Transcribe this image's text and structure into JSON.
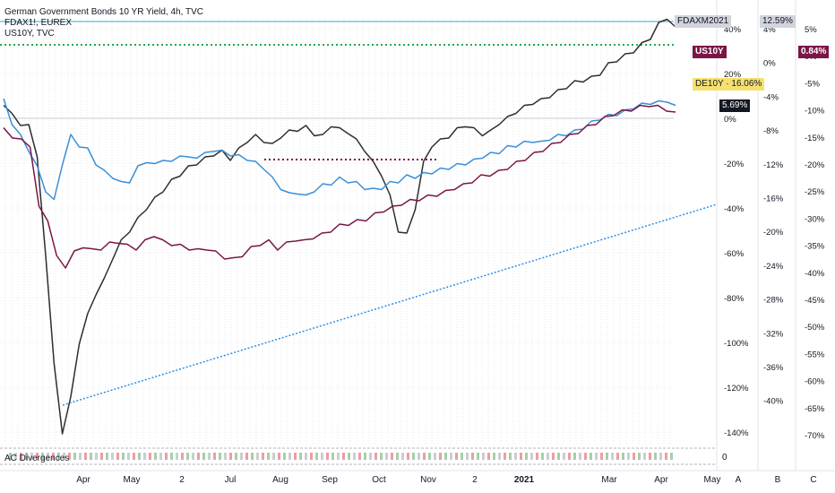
{
  "legend": {
    "line1": "German Government Bonds 10 YR Yield, 4h, TVC",
    "line2": "FDAX1!, EUREX",
    "line3": "US10Y, TVC"
  },
  "subpanel_label": "AC Divergences",
  "subpanel_zero": "0",
  "tags": {
    "fdax": "FDAXM2021",
    "fdax_pct": "12.59%",
    "us10y": "US10Y",
    "us10y_pct": "0.84%",
    "de10y": "DE10Y · 16.06%",
    "de10y_val": "5.69%"
  },
  "colors": {
    "de10y": "#2e2e2e",
    "fdax": "#3a8fd8",
    "us10y": "#7a1545",
    "trend": "#2f8de4",
    "green_dotted": "#22aa44",
    "hline": "#3fa7c9",
    "tag_fdax_bg": "#d1d4dc",
    "tag_us10y_bg": "#7a1545",
    "tag_de10y_bg": "#f5e170",
    "tag_black_bg": "#131722"
  },
  "chart_data": {
    "type": "line",
    "x_tick_labels": [
      "Apr",
      "May",
      "2",
      "Jul",
      "Aug",
      "Sep",
      "Oct",
      "Nov",
      "2",
      "2021",
      "Mar",
      "Apr",
      "May"
    ],
    "axis_bottom_letters": [
      "A",
      "B",
      "C"
    ],
    "axes": {
      "axis1": [
        "40%",
        "20%",
        "0%",
        "-20%",
        "-40%",
        "-60%",
        "-80%",
        "-100%",
        "-120%",
        "-140%"
      ],
      "axis2": [
        "4%",
        "0%",
        "-4%",
        "-8%",
        "-12%",
        "-16%",
        "-20%",
        "-24%",
        "-28%",
        "-32%",
        "-36%",
        "-40%"
      ],
      "axis3": [
        "5%",
        "0%",
        "-5%",
        "-10%",
        "-15%",
        "-20%",
        "-25%",
        "-30%",
        "-35%",
        "-40%",
        "-45%",
        "-50%",
        "-55%",
        "-60%",
        "-65%",
        "-70%"
      ]
    },
    "series": [
      {
        "key": "de10y",
        "name": "DE10Y",
        "values": [
          5,
          3,
          -4,
          -2,
          -18,
          -60,
          -110,
          -140,
          -125,
          -100,
          -88,
          -78,
          -72,
          -62,
          -55,
          -50,
          -45,
          -40,
          -36,
          -32,
          -28,
          -25,
          -22,
          -20,
          -18,
          -16,
          -15,
          -18,
          -14,
          -10,
          -8,
          -10,
          -12,
          -8,
          -6,
          -5,
          -4,
          -7,
          -8,
          -3,
          -5,
          -6,
          -10,
          -14,
          -20,
          -25,
          -35,
          -50,
          -52,
          -40,
          -20,
          -12,
          -10,
          -8,
          -5,
          -3,
          -5,
          -7,
          -6,
          -2,
          0,
          3,
          5,
          7,
          8,
          10,
          12,
          14,
          16,
          17,
          18,
          20,
          24,
          26,
          28,
          30,
          33,
          36,
          42,
          45,
          40
        ]
      },
      {
        "key": "fdax",
        "name": "FDAXM2021",
        "values": [
          8,
          -2,
          -8,
          -14,
          -22,
          -32,
          -37,
          -20,
          -8,
          -12,
          -14,
          -20,
          -24,
          -26,
          -29,
          -28,
          -22,
          -19,
          -21,
          -18,
          -20,
          -16,
          -18,
          -17,
          -16,
          -14,
          -15,
          -16,
          -17,
          -18,
          -20,
          -22,
          -27,
          -31,
          -34,
          -33,
          -35,
          -32,
          -30,
          -29,
          -27,
          -28,
          -29,
          -31,
          -32,
          -31,
          -29,
          -28,
          -26,
          -26,
          -25,
          -24,
          -23,
          -22,
          -21,
          -20,
          -19,
          -17,
          -16,
          -15,
          -13,
          -12,
          -11,
          -10,
          -11,
          -9,
          -8,
          -7,
          -6,
          -4,
          -2,
          0,
          1,
          2,
          3,
          5,
          6,
          7,
          7,
          8,
          5
        ]
      },
      {
        "key": "us10y",
        "name": "US10Y",
        "values": [
          -5,
          -8,
          -10,
          -12,
          -40,
          -45,
          -62,
          -66,
          -60,
          -57,
          -59,
          -58,
          -56,
          -55,
          -57,
          -58,
          -55,
          -52,
          -55,
          -56,
          -57,
          -58,
          -59,
          -58,
          -60,
          -62,
          -63,
          -61,
          -58,
          -56,
          -55,
          -58,
          -56,
          -54,
          -55,
          -53,
          -52,
          -50,
          -48,
          -47,
          -46,
          -45,
          -43,
          -41,
          -40,
          -38,
          -37,
          -36,
          -35,
          -34,
          -33,
          -31,
          -30,
          -28,
          -26,
          -25,
          -24,
          -22,
          -20,
          -18,
          -16,
          -14,
          -12,
          -10,
          -8,
          -6,
          -4,
          -2,
          0,
          2,
          3,
          4,
          5,
          6,
          5,
          4,
          2
        ]
      }
    ],
    "trendline": {
      "from": [
        0,
        -72
      ],
      "to": [
        1,
        -30
      ]
    }
  }
}
